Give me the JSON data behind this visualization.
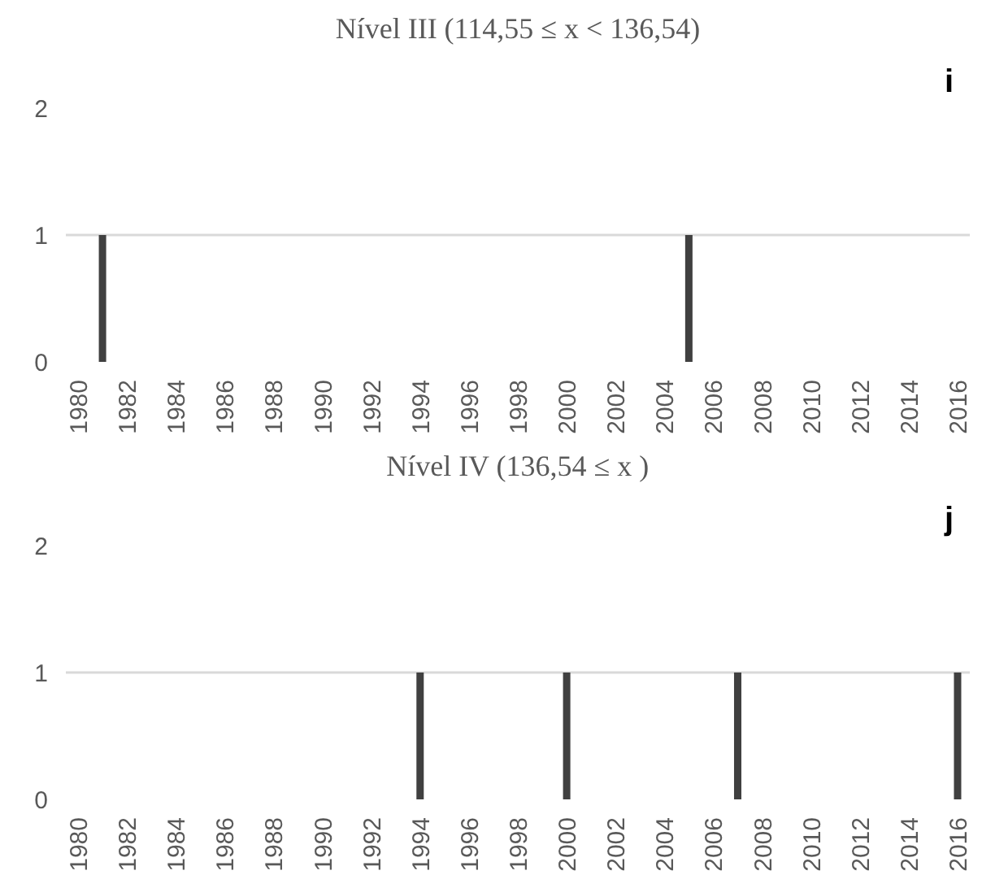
{
  "chart_data": [
    {
      "type": "bar",
      "title": "Nível III (114,55 ≤ x < 136,54)",
      "annotations": [
        "i"
      ],
      "categories": [
        "1980",
        null,
        "1982",
        null,
        "1984",
        null,
        "1986",
        null,
        "1988",
        null,
        "1990",
        null,
        "1992",
        null,
        "1994",
        null,
        "1996",
        null,
        "1998",
        null,
        "2000",
        null,
        "2002",
        null,
        "2004",
        null,
        "2006",
        null,
        "2008",
        null,
        "2010",
        null,
        "2012",
        null,
        "2014",
        null,
        "2016"
      ],
      "values": [
        0,
        1,
        0,
        0,
        0,
        0,
        0,
        0,
        0,
        0,
        0,
        0,
        0,
        0,
        0,
        0,
        0,
        0,
        0,
        0,
        0,
        0,
        0,
        0,
        0,
        1,
        0,
        0,
        0,
        0,
        0,
        0,
        0,
        0,
        0,
        0,
        0
      ],
      "color": "#404040",
      "ylim": [
        0,
        2
      ],
      "yticks": [
        0,
        1,
        2
      ],
      "grid": "y",
      "legend": false
    },
    {
      "type": "bar",
      "title": "Nível IV (136,54 ≤ x )",
      "annotations": [
        "j"
      ],
      "categories": [
        "1980",
        null,
        "1982",
        null,
        "1984",
        null,
        "1986",
        null,
        "1988",
        null,
        "1990",
        null,
        "1992",
        null,
        "1994",
        null,
        "1996",
        null,
        "1998",
        null,
        "2000",
        null,
        "2002",
        null,
        "2004",
        null,
        "2006",
        null,
        "2008",
        null,
        "2010",
        null,
        "2012",
        null,
        "2014",
        null,
        "2016"
      ],
      "values": [
        0,
        0,
        0,
        0,
        0,
        0,
        0,
        0,
        0,
        0,
        0,
        0,
        0,
        0,
        1,
        0,
        0,
        0,
        0,
        0,
        1,
        0,
        0,
        0,
        0,
        0,
        0,
        1,
        0,
        0,
        0,
        0,
        0,
        0,
        0,
        0,
        1
      ],
      "color": "#404040",
      "ylim": [
        0,
        2
      ],
      "yticks": [
        0,
        1,
        2
      ],
      "grid": "y",
      "legend": false
    }
  ]
}
